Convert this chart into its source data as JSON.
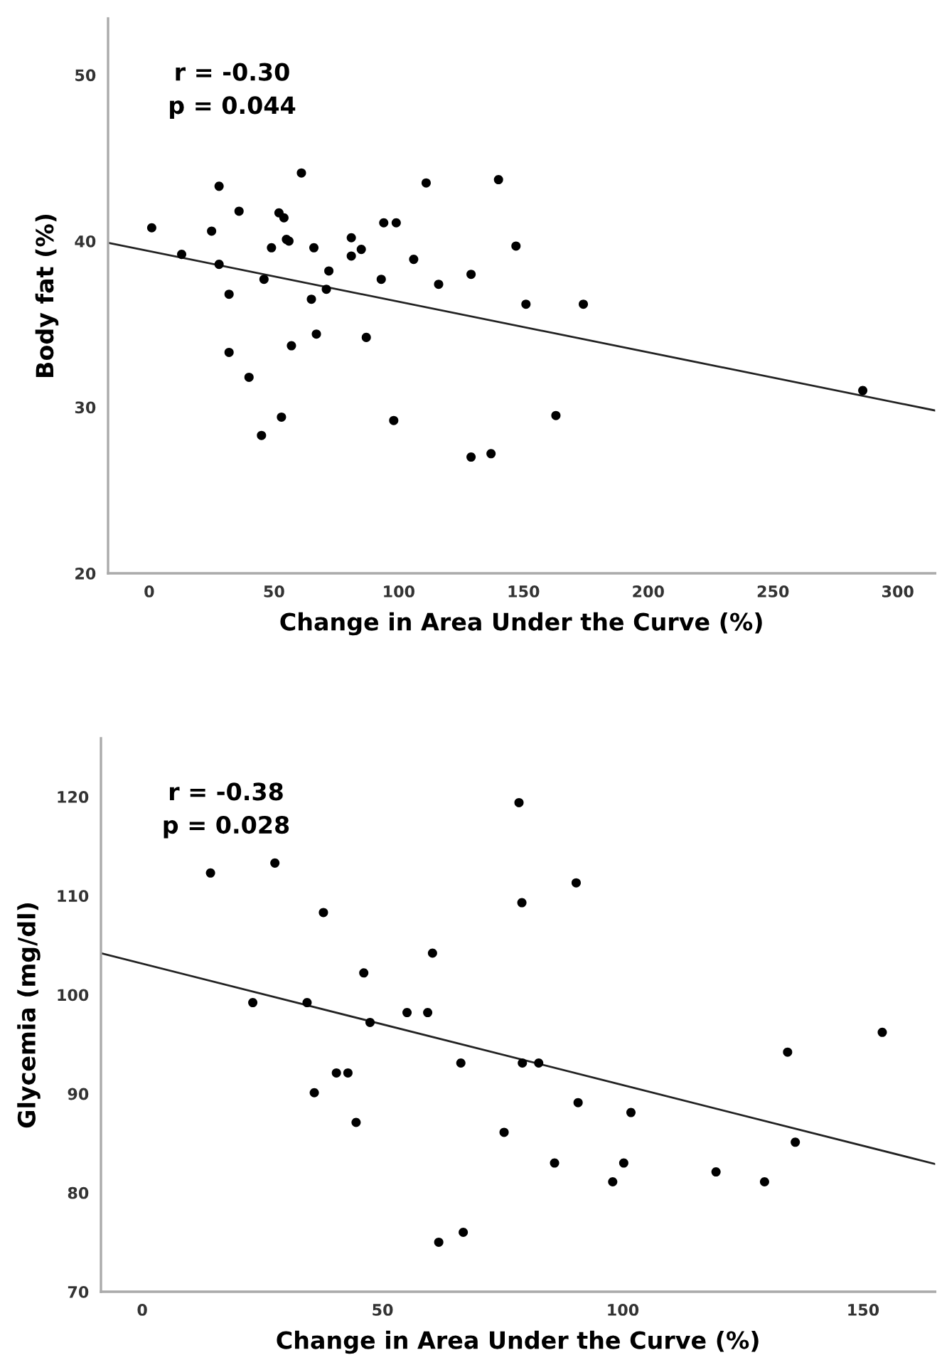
{
  "chart_data": [
    {
      "type": "scatter",
      "xlabel": "Change in Area Under the Curve (%)",
      "ylabel": "Body fat (%)",
      "annotations": [
        "r = -0.30",
        "p = 0.044"
      ],
      "xlim": [
        -16.5,
        315
      ],
      "xticks": [
        0,
        50,
        100,
        150,
        200,
        250,
        300
      ],
      "ylim": [
        20,
        53.4
      ],
      "yticks": [
        20,
        30,
        40,
        50
      ],
      "grid": false,
      "legend": false,
      "series": [
        {
          "marker": "circle",
          "color": "#000000",
          "x": [
            1,
            13,
            25,
            28,
            28,
            32,
            36,
            32,
            40,
            45,
            46,
            49,
            52,
            54,
            55,
            56,
            57,
            53,
            61,
            66,
            65,
            67,
            71,
            72,
            81,
            81,
            85,
            87,
            93,
            94,
            99,
            98,
            106,
            111,
            116,
            129,
            129,
            137,
            140,
            147,
            151,
            163,
            174,
            286
          ],
          "values": [
            40.8,
            39.2,
            40.6,
            43.3,
            38.6,
            36.8,
            41.8,
            33.3,
            31.8,
            28.3,
            37.7,
            39.6,
            41.7,
            41.4,
            40.1,
            40.0,
            33.7,
            29.4,
            44.1,
            39.6,
            36.5,
            34.4,
            37.1,
            38.2,
            40.2,
            39.1,
            39.5,
            34.2,
            37.7,
            41.1,
            41.1,
            29.2,
            38.9,
            43.5,
            37.4,
            38.0,
            27.0,
            27.2,
            43.7,
            39.7,
            36.2,
            29.5,
            36.2,
            31.0
          ]
        },
        {
          "type": "line",
          "color": "#222222",
          "x": [
            -16.5,
            315
          ],
          "values": [
            39.9,
            29.8
          ]
        }
      ]
    },
    {
      "type": "scatter",
      "xlabel": "Change in Area Under the Curve (%)",
      "ylabel": "Glycemia (mg/dl)",
      "annotations": [
        "r = -0.38",
        "p = 0.028"
      ],
      "xlim": [
        -8.6,
        165
      ],
      "xticks": [
        0,
        50,
        100,
        150
      ],
      "ylim": [
        70,
        125.9
      ],
      "yticks": [
        70,
        80,
        90,
        100,
        110,
        120
      ],
      "grid": false,
      "legend": false,
      "series": [
        {
          "marker": "circle",
          "color": "#000000",
          "x": [
            14.2,
            27.6,
            37.7,
            23.0,
            34.3,
            46.1,
            47.4,
            55.1,
            59.4,
            60.4,
            40.4,
            42.8,
            35.8,
            44.5,
            66.3,
            78.4,
            79.0,
            90.3,
            79.1,
            82.5,
            75.3,
            90.7,
            101.7,
            85.8,
            100.2,
            97.9,
            119.4,
            129.5,
            134.3,
            135.9,
            154.0,
            61.7,
            66.8
          ],
          "values": [
            112.3,
            113.3,
            108.3,
            99.2,
            99.2,
            102.2,
            97.2,
            98.2,
            98.2,
            104.2,
            92.1,
            92.1,
            90.1,
            87.1,
            93.1,
            119.4,
            109.3,
            111.3,
            93.1,
            93.1,
            86.1,
            89.1,
            88.1,
            83.0,
            83.0,
            81.1,
            82.1,
            81.1,
            94.2,
            85.1,
            96.2,
            75.0,
            76.0
          ]
        },
        {
          "type": "line",
          "color": "#222222",
          "x": [
            -8.6,
            165
          ],
          "values": [
            104.2,
            82.9
          ]
        }
      ]
    }
  ]
}
